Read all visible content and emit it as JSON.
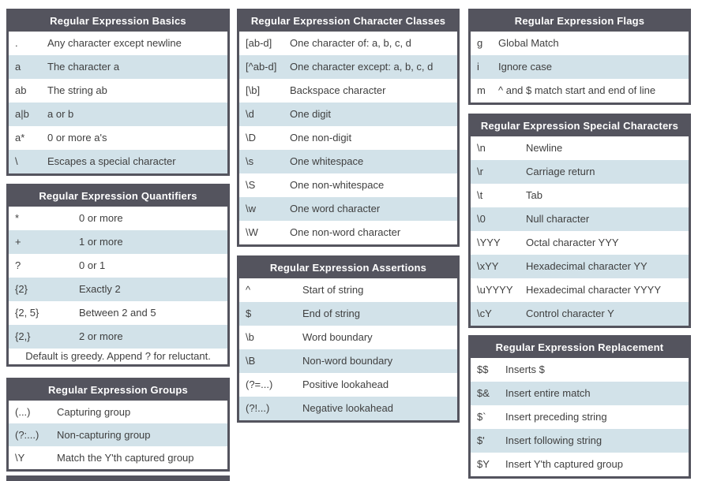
{
  "colors": {
    "header_bg": "#54545E",
    "header_text": "#FFFFFF",
    "row_alt_bg": "#D2E2E9",
    "row_text": "#3F3F3F"
  },
  "tables": {
    "basics": {
      "title": "Regular Expression Basics",
      "rows": [
        {
          "s": ".",
          "d": "Any character except newline"
        },
        {
          "s": "a",
          "d": "The character a"
        },
        {
          "s": "ab",
          "d": "The string ab"
        },
        {
          "s": "a|b",
          "d": "a or b"
        },
        {
          "s": "a*",
          "d": "0 or more a's"
        },
        {
          "s": "\\",
          "d": "Escapes a special character"
        }
      ]
    },
    "quantifiers": {
      "title": "Regular Expression Quantifiers",
      "rows": [
        {
          "s": "*",
          "d": "0 or more"
        },
        {
          "s": "+",
          "d": "1 or more"
        },
        {
          "s": "?",
          "d": "0 or 1"
        },
        {
          "s": "{2}",
          "d": "Exactly 2"
        },
        {
          "s": "{2, 5}",
          "d": "Between 2 and 5"
        },
        {
          "s": "{2,}",
          "d": "2 or more"
        }
      ],
      "footer": "Default is greedy. Append ? for reluctant."
    },
    "groups": {
      "title": "Regular Expression Groups",
      "rows": [
        {
          "s": "(...)",
          "d": "Capturing group"
        },
        {
          "s": "(?:...)",
          "d": "Non-capturing group"
        },
        {
          "s": "\\Y",
          "d": "Match the Y'th captured group"
        }
      ]
    },
    "charclasses": {
      "title": "Regular Expression Character Classes",
      "rows": [
        {
          "s": "[ab-d]",
          "d": "One character of: a, b, c, d"
        },
        {
          "s": "[^ab-d]",
          "d": "One character except: a, b, c, d"
        },
        {
          "s": "[\\b]",
          "d": "Backspace character"
        },
        {
          "s": "\\d",
          "d": "One digit"
        },
        {
          "s": "\\D",
          "d": "One non-digit"
        },
        {
          "s": "\\s",
          "d": "One whitespace"
        },
        {
          "s": "\\S",
          "d": "One non-whitespace"
        },
        {
          "s": "\\w",
          "d": "One word character"
        },
        {
          "s": "\\W",
          "d": "One non-word character"
        }
      ]
    },
    "assertions": {
      "title": "Regular Expression Assertions",
      "rows": [
        {
          "s": "^",
          "d": "Start of string"
        },
        {
          "s": "$",
          "d": "End of string"
        },
        {
          "s": "\\b",
          "d": "Word boundary"
        },
        {
          "s": "\\B",
          "d": "Non-word boundary"
        },
        {
          "s": "(?=...)",
          "d": "Positive lookahead"
        },
        {
          "s": "(?!...)",
          "d": "Negative lookahead"
        }
      ]
    },
    "flags": {
      "title": "Regular Expression Flags",
      "rows": [
        {
          "s": "g",
          "d": "Global Match"
        },
        {
          "s": "i",
          "d": "Ignore case"
        },
        {
          "s": "m",
          "d": "^ and $ match start and end of line"
        }
      ]
    },
    "special": {
      "title": "Regular Expression Special Characters",
      "rows": [
        {
          "s": "\\n",
          "d": "Newline"
        },
        {
          "s": "\\r",
          "d": "Carriage return"
        },
        {
          "s": "\\t",
          "d": "Tab"
        },
        {
          "s": "\\0",
          "d": "Null character"
        },
        {
          "s": "\\YYY",
          "d": "Octal character YYY"
        },
        {
          "s": "\\xYY",
          "d": "Hexadecimal character YY"
        },
        {
          "s": "\\uYYYY",
          "d": "Hexadecimal character YYYY"
        },
        {
          "s": "\\cY",
          "d": "Control character Y"
        }
      ]
    },
    "replacement": {
      "title": "Regular Expression Replacement",
      "rows": [
        {
          "s": "$$",
          "d": "Inserts $"
        },
        {
          "s": "$&",
          "d": "Insert entire match"
        },
        {
          "s": "$`",
          "d": "Insert preceding string"
        },
        {
          "s": "$'",
          "d": "Insert following string"
        },
        {
          "s": "$Y",
          "d": "Insert Y'th captured group"
        }
      ]
    }
  }
}
